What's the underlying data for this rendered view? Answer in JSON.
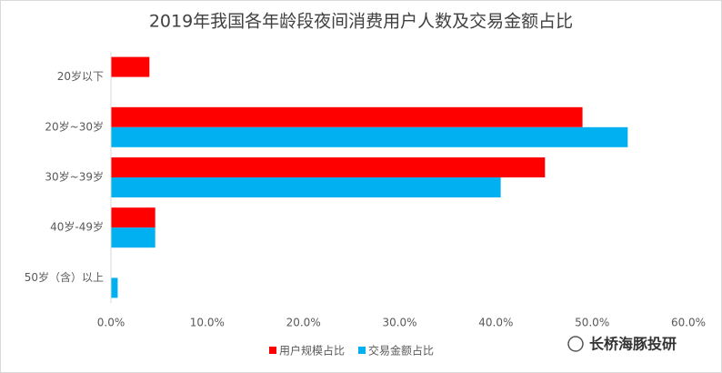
{
  "chart_data": {
    "type": "bar",
    "orientation": "horizontal",
    "title": "2019年我国各年龄段夜间消费用户人数及交易金额占比",
    "categories": [
      "20岁以下",
      "20岁~30岁",
      "30岁~39岁",
      "40岁-49岁",
      "50岁（含）以上"
    ],
    "series": [
      {
        "name": "用户规模占比",
        "color": "#ff0000",
        "values": [
          4.0,
          49.0,
          45.1,
          4.6,
          0
        ]
      },
      {
        "name": "交易金额占比",
        "color": "#00b0f0",
        "values": [
          0,
          53.7,
          40.5,
          4.6,
          0.7
        ]
      }
    ],
    "xlim": [
      0,
      60
    ],
    "xticks": [
      {
        "value": 0,
        "label": "0.0%"
      },
      {
        "value": 10,
        "label": "10.0%"
      },
      {
        "value": 20,
        "label": "20.0%"
      },
      {
        "value": 30,
        "label": "30.0%"
      },
      {
        "value": 40,
        "label": "40.0%"
      },
      {
        "value": 50,
        "label": "50.0%"
      },
      {
        "value": 60,
        "label": "60.0%"
      }
    ],
    "grid": false,
    "legend": "bottom",
    "source_logo": "长桥海豚投研"
  }
}
